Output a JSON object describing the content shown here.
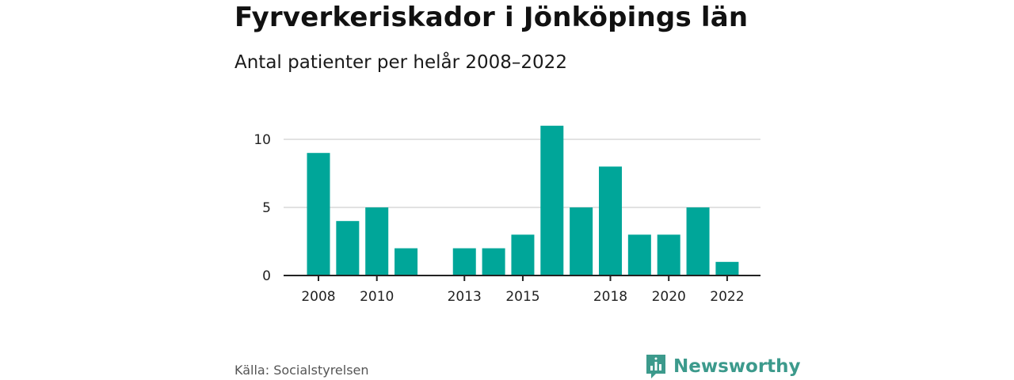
{
  "header": {
    "title": "Fyrverkeriskador i Jönköpings län",
    "subtitle": "Antal patienter per helår 2008–2022"
  },
  "footer": {
    "source": "Källa: Socialstyrelsen",
    "brand": "Newsworthy",
    "brand_icon": "bar-chart-logo-icon"
  },
  "colors": {
    "bar": "#00a699",
    "grid": "#d9d9d9",
    "axis": "#222222",
    "brand": "#3c9a8c"
  },
  "chart_data": {
    "type": "bar",
    "categories": [
      "2008",
      "2009",
      "2010",
      "2011",
      "2012",
      "2013",
      "2014",
      "2015",
      "2016",
      "2017",
      "2018",
      "2019",
      "2020",
      "2021",
      "2022"
    ],
    "values": [
      9,
      4,
      5,
      2,
      0,
      2,
      2,
      3,
      11,
      5,
      8,
      3,
      3,
      5,
      1
    ],
    "x_tick_labels": [
      "2008",
      "2010",
      "2013",
      "2015",
      "2018",
      "2020",
      "2022"
    ],
    "y_ticks": [
      0,
      5,
      10
    ],
    "ylim": [
      0,
      12
    ],
    "grid": true,
    "legend": "none"
  }
}
